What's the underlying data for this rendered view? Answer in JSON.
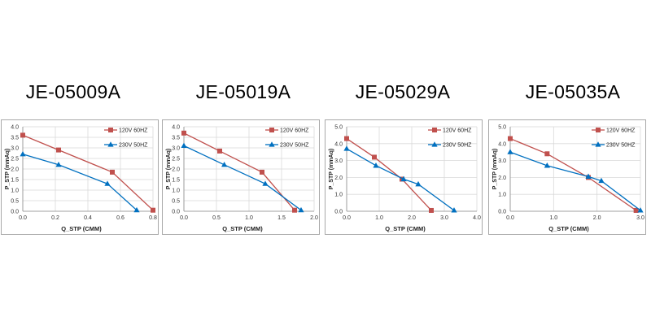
{
  "chart_data": [
    {
      "type": "line",
      "title": "JE-05009A",
      "xlabel": "Q_STP (CMM)",
      "ylabel": "P_STP (mmAq)",
      "xlim": [
        0,
        0.8
      ],
      "ylim": [
        0,
        4.0
      ],
      "xticks": [
        "0.0",
        "0.2",
        "0.4",
        "0.6",
        "0.8"
      ],
      "yticks": [
        "0.0",
        "0.5",
        "1.0",
        "1.5",
        "2.0",
        "2.5",
        "3.0",
        "3.5",
        "4.0"
      ],
      "grid": true,
      "legend": "top-right",
      "series": [
        {
          "name": "120V 60HZ",
          "color": "#c0504d",
          "marker": "square",
          "x": [
            0,
            0.22,
            0.55,
            0.8
          ],
          "y": [
            3.6,
            2.9,
            1.85,
            0.05
          ]
        },
        {
          "name": "230V 50HZ",
          "color": "#0070c0",
          "marker": "triangle",
          "x": [
            0,
            0.22,
            0.52,
            0.7
          ],
          "y": [
            2.7,
            2.2,
            1.3,
            0.05
          ]
        }
      ]
    },
    {
      "type": "line",
      "title": "JE-05019A",
      "xlabel": "Q_STP (CMM)",
      "ylabel": "P_STP (mmAq)",
      "xlim": [
        0,
        2.0
      ],
      "ylim": [
        0,
        4.0
      ],
      "xticks": [
        "0.0",
        "0.5",
        "1.0",
        "1.5",
        "2.0"
      ],
      "yticks": [
        "0.0",
        "0.5",
        "1.0",
        "1.5",
        "2.0",
        "2.5",
        "3.0",
        "3.5",
        "4.0"
      ],
      "grid": true,
      "legend": "top-right",
      "series": [
        {
          "name": "120V 60HZ",
          "color": "#c0504d",
          "marker": "square",
          "x": [
            0,
            0.55,
            1.2,
            1.7
          ],
          "y": [
            3.7,
            2.85,
            1.85,
            0.05
          ]
        },
        {
          "name": "230V 50HZ",
          "color": "#0070c0",
          "marker": "triangle",
          "x": [
            0,
            0.62,
            1.25,
            1.8
          ],
          "y": [
            3.1,
            2.2,
            1.3,
            0.05
          ]
        }
      ]
    },
    {
      "type": "line",
      "title": "JE-05029A",
      "xlabel": "Q_STP (CMM)",
      "ylabel": "P_STP (mmAq)",
      "xlim": [
        0,
        4.0
      ],
      "ylim": [
        0,
        5.0
      ],
      "xticks": [
        "0.0",
        "1.0",
        "2.0",
        "3.0",
        "4.0"
      ],
      "yticks": [
        "0.0",
        "1.0",
        "2.0",
        "3.0",
        "4.0",
        "5.0"
      ],
      "grid": true,
      "legend": "top-right",
      "series": [
        {
          "name": "120V 60HZ",
          "color": "#c0504d",
          "marker": "square",
          "x": [
            0,
            0.85,
            1.7,
            2.6
          ],
          "y": [
            4.3,
            3.2,
            1.9,
            0.05
          ]
        },
        {
          "name": "230V 50HZ",
          "color": "#0070c0",
          "marker": "triangle",
          "x": [
            0,
            0.9,
            1.75,
            2.2,
            3.3
          ],
          "y": [
            3.7,
            2.7,
            1.9,
            1.6,
            0.05
          ]
        }
      ]
    },
    {
      "type": "line",
      "title": "JE-05035A",
      "xlabel": "Q_STP (CMM)",
      "ylabel": "P_STP (mmAq)",
      "xlim": [
        0,
        3.0
      ],
      "ylim": [
        0,
        5.0
      ],
      "xticks": [
        "0.0",
        "1.0",
        "2.0",
        "3.0"
      ],
      "yticks": [
        "0.0",
        "1.0",
        "2.0",
        "3.0",
        "4.0",
        "5.0"
      ],
      "grid": true,
      "legend": "top-right",
      "series": [
        {
          "name": "120V 60HZ",
          "color": "#c0504d",
          "marker": "square",
          "x": [
            0,
            0.85,
            1.8,
            2.9
          ],
          "y": [
            4.3,
            3.4,
            2.0,
            0.05
          ]
        },
        {
          "name": "230V 50HZ",
          "color": "#0070c0",
          "marker": "triangle",
          "x": [
            0,
            0.85,
            1.8,
            2.1,
            3.0
          ],
          "y": [
            3.5,
            2.7,
            2.05,
            1.8,
            0.05
          ]
        }
      ]
    }
  ]
}
